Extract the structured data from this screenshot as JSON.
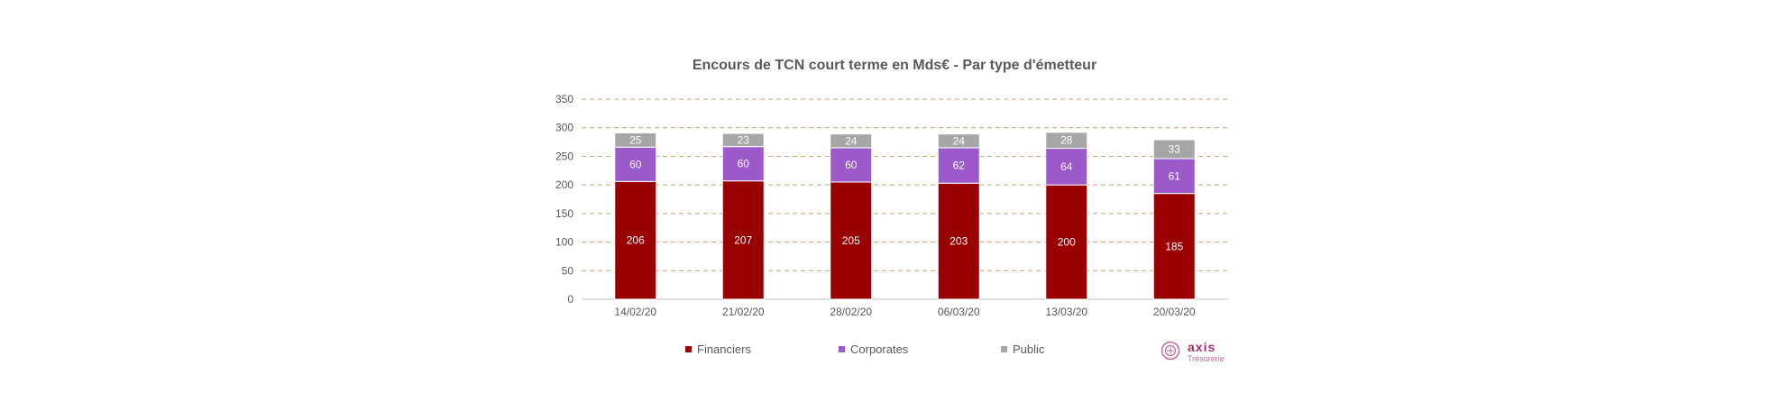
{
  "chart_data": {
    "type": "bar",
    "stacked": true,
    "title": "Encours de TCN court terme en Mds€ - Par type d'émetteur",
    "categories": [
      "14/02/20",
      "21/02/20",
      "28/02/20",
      "06/03/20",
      "13/03/20",
      "20/03/20"
    ],
    "series": [
      {
        "name": "Financiers",
        "values": [
          206,
          207,
          205,
          203,
          200,
          185
        ],
        "color": "#990000"
      },
      {
        "name": "Corporates",
        "values": [
          60,
          60,
          60,
          62,
          64,
          61
        ],
        "color": "#9b59c9"
      },
      {
        "name": "Public",
        "values": [
          25,
          23,
          24,
          24,
          28,
          33
        ],
        "color": "#a6a6a6"
      }
    ],
    "ylim": [
      0,
      350
    ],
    "yticks": [
      0,
      50,
      100,
      150,
      200,
      250,
      300,
      350
    ],
    "grid": true,
    "grid_style": "dashed",
    "grid_color": "#c8a070",
    "legend_position": "bottom"
  },
  "logo": {
    "word": "axis",
    "sub": "Trésorerie",
    "color": "#a0306e"
  }
}
